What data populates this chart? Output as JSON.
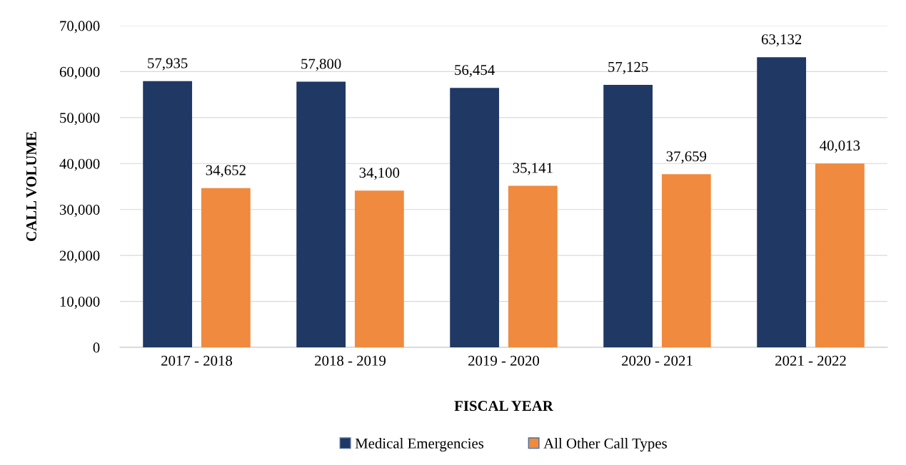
{
  "chart_data": {
    "type": "bar",
    "xlabel": "FISCAL YEAR",
    "ylabel": "CALL VOLUME",
    "categories": [
      "2017 - 2018",
      "2018 - 2019",
      "2019 - 2020",
      "2020 - 2021",
      "2021 - 2022"
    ],
    "series": [
      {
        "name": "Medical Emergencies",
        "color": "#203864",
        "values": [
          57935,
          57800,
          56454,
          57125,
          63132
        ],
        "value_labels": [
          "57,935",
          "57,800",
          "56,454",
          "57,125",
          "63,132"
        ]
      },
      {
        "name": "All Other Call Types",
        "color": "#f08a3e",
        "values": [
          34652,
          34100,
          35141,
          37659,
          40013
        ],
        "value_labels": [
          "34,652",
          "34,100",
          "35,141",
          "37,659",
          "40,013"
        ]
      }
    ],
    "ylim": [
      0,
      70000
    ],
    "yticks": [
      {
        "value": 0,
        "label": "0"
      },
      {
        "value": 10000,
        "label": "10,000"
      },
      {
        "value": 20000,
        "label": "20,000"
      },
      {
        "value": 30000,
        "label": "30,000"
      },
      {
        "value": 40000,
        "label": "40,000"
      },
      {
        "value": 50000,
        "label": "50,000"
      },
      {
        "value": 60000,
        "label": "60,000"
      },
      {
        "value": 70000,
        "label": "70,000"
      }
    ],
    "grid": "y",
    "legend": "bottom"
  }
}
